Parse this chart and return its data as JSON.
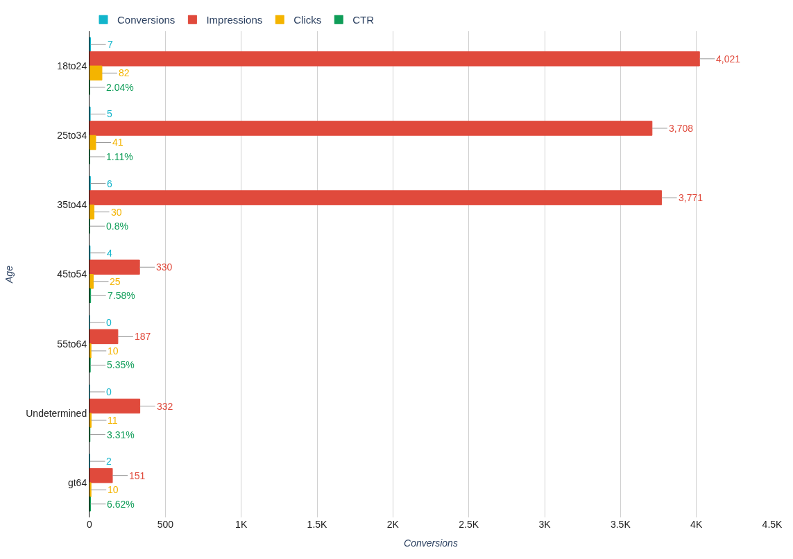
{
  "chart_data": {
    "type": "bar",
    "orientation": "horizontal",
    "xlabel": "Conversions",
    "ylabel": "Age",
    "categories": [
      "18to24",
      "25to34",
      "35to44",
      "45to54",
      "55to64",
      "Undetermined",
      "gt64"
    ],
    "series": [
      {
        "name": "Conversions",
        "color": "#12b5cb",
        "values": [
          7,
          5,
          6,
          4,
          0,
          0,
          2
        ],
        "value_labels": [
          "7",
          "5",
          "6",
          "4",
          "0",
          "0",
          "2"
        ]
      },
      {
        "name": "Impressions",
        "color": "#e04a3c",
        "values": [
          4021,
          3708,
          3771,
          330,
          187,
          332,
          151
        ],
        "value_labels": [
          "4,021",
          "3,708",
          "3,771",
          "330",
          "187",
          "332",
          "151"
        ]
      },
      {
        "name": "Clicks",
        "color": "#f4b400",
        "values": [
          82,
          41,
          30,
          25,
          10,
          11,
          10
        ],
        "value_labels": [
          "82",
          "41",
          "30",
          "25",
          "10",
          "11",
          "10"
        ]
      },
      {
        "name": "CTR",
        "color": "#0f9d58",
        "values": [
          2.04,
          1.11,
          0.8,
          7.58,
          5.35,
          3.31,
          6.62
        ],
        "value_labels": [
          "2.04%",
          "1.11%",
          "0.8%",
          "7.58%",
          "5.35%",
          "3.31%",
          "6.62%"
        ]
      }
    ],
    "xlim": [
      0,
      4500
    ],
    "xticks": [
      0,
      500,
      {
        "value": 1000,
        "label": "1K"
      },
      {
        "value": 1500,
        "label": "1.5K"
      },
      {
        "value": 2000,
        "label": "2K"
      },
      {
        "value": 2500,
        "label": "2.5K"
      },
      {
        "value": 3000,
        "label": "3K"
      },
      {
        "value": 3500,
        "label": "3.5K"
      },
      {
        "value": 4000,
        "label": "4K"
      },
      {
        "value": 4500,
        "label": "4.5K"
      }
    ],
    "grid": "x",
    "legend": "top"
  }
}
